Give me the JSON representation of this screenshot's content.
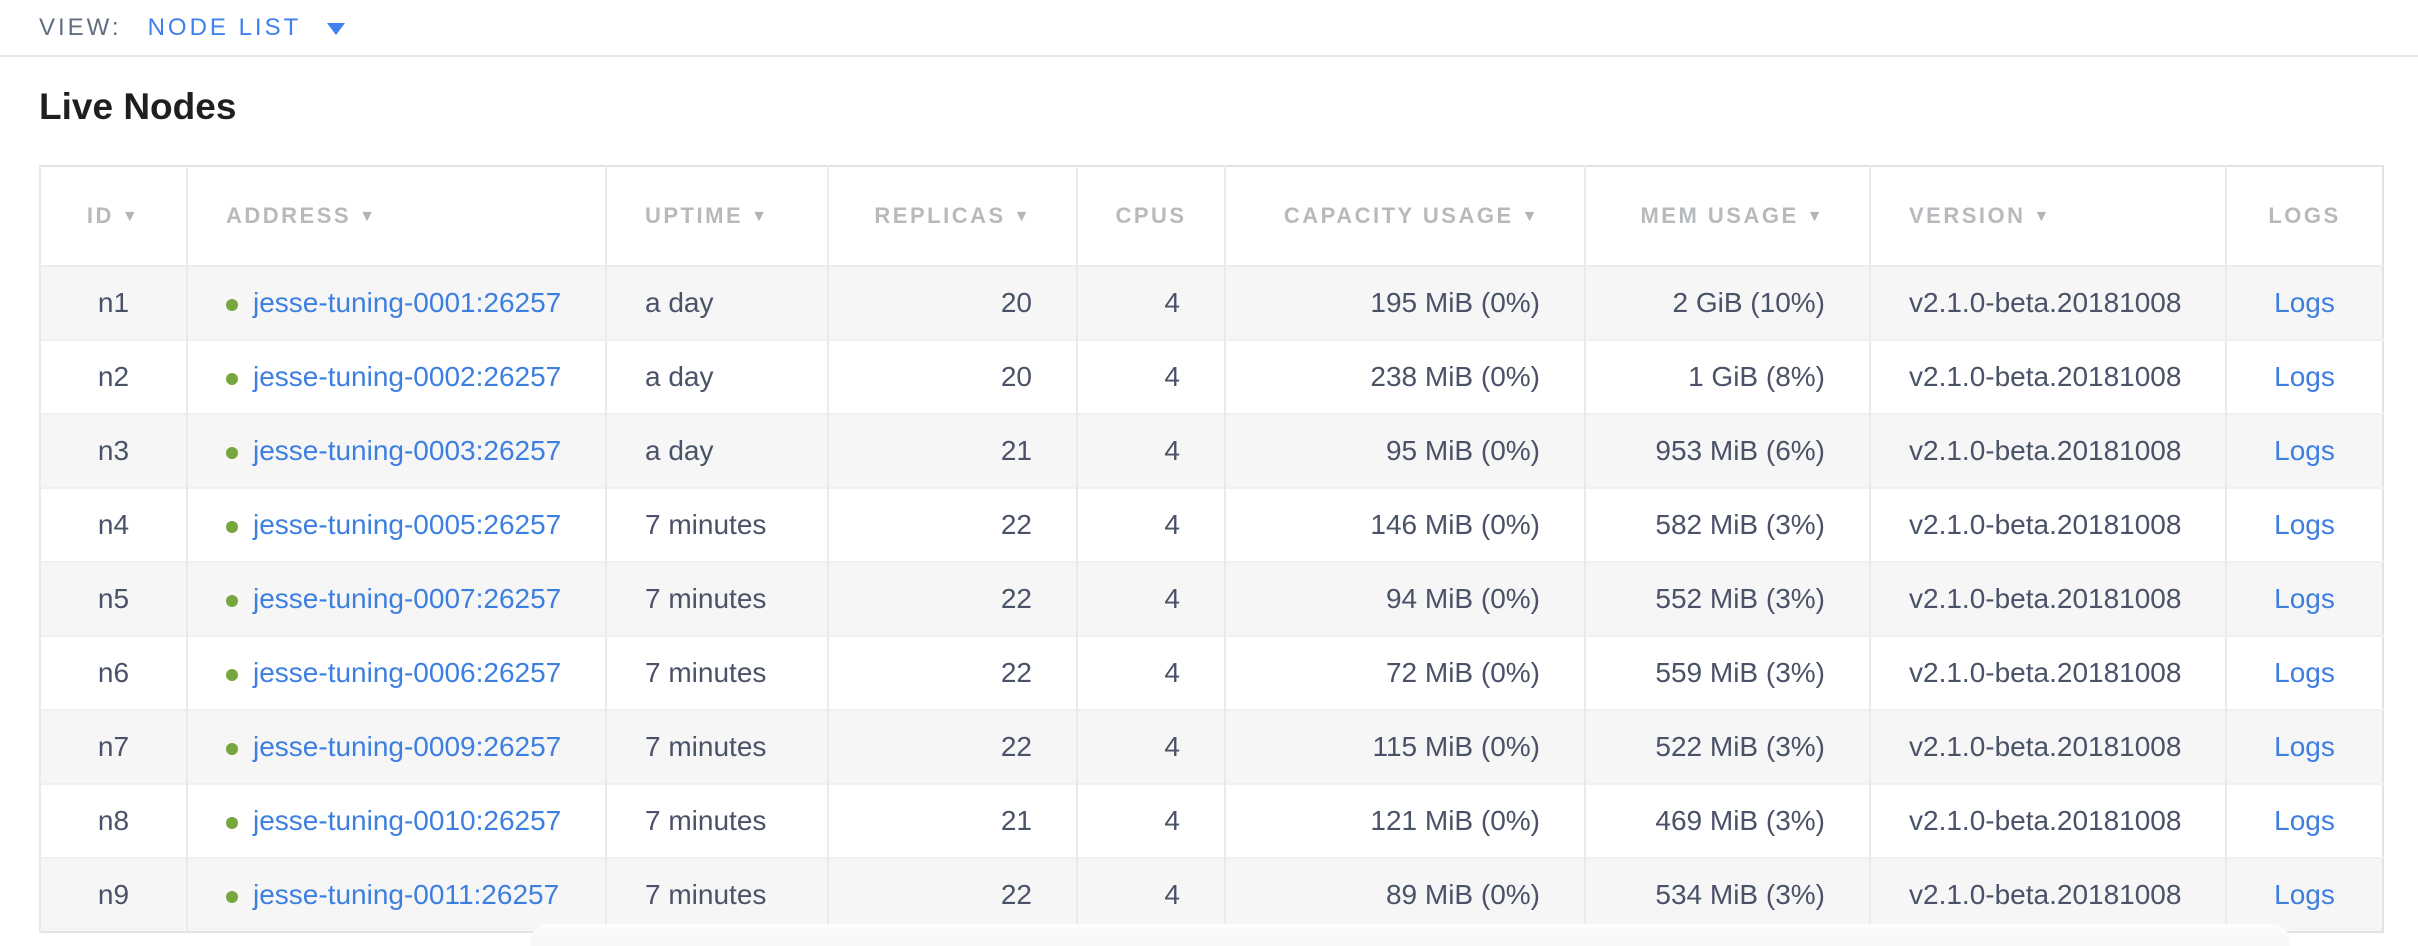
{
  "view_bar": {
    "label": "VIEW:",
    "selected": "NODE LIST"
  },
  "page": {
    "title": "Live Nodes"
  },
  "icons": {
    "sort_desc": "▼",
    "dropdown_caret": "▼",
    "live_status_dot": "●"
  },
  "colors": {
    "topbar_link_blue": "#3e80f0",
    "table_link_blue": "#3d7fe0",
    "live_dot_green": "#76a63c",
    "header_text_gray": "#b7babd",
    "cell_text_slate": "#4a5268",
    "row_stripe_gray": "#f6f6f6"
  },
  "table": {
    "columns": [
      {
        "key": "id",
        "label": "ID",
        "sorted": true,
        "align": "center"
      },
      {
        "key": "address",
        "label": "ADDRESS",
        "sorted": true,
        "align": "left"
      },
      {
        "key": "uptime",
        "label": "UPTIME",
        "sorted": true,
        "align": "left"
      },
      {
        "key": "replicas",
        "label": "REPLICAS",
        "sorted": true,
        "align": "right"
      },
      {
        "key": "cpus",
        "label": "CPUS",
        "sorted": false,
        "align": "right",
        "header_align": "center"
      },
      {
        "key": "capacity",
        "label": "CAPACITY USAGE",
        "sorted": true,
        "align": "right"
      },
      {
        "key": "mem",
        "label": "MEM USAGE",
        "sorted": true,
        "align": "right"
      },
      {
        "key": "version",
        "label": "VERSION",
        "sorted": true,
        "align": "left"
      },
      {
        "key": "logs",
        "label": "LOGS",
        "sorted": false,
        "align": "center"
      }
    ],
    "rows": [
      {
        "id": "n1",
        "address": "jesse-tuning-0001:26257",
        "uptime": "a day",
        "replicas": "20",
        "cpus": "4",
        "capacity": "195 MiB (0%)",
        "mem": "2 GiB (10%)",
        "version": "v2.1.0-beta.20181008",
        "logs": "Logs"
      },
      {
        "id": "n2",
        "address": "jesse-tuning-0002:26257",
        "uptime": "a day",
        "replicas": "20",
        "cpus": "4",
        "capacity": "238 MiB (0%)",
        "mem": "1 GiB (8%)",
        "version": "v2.1.0-beta.20181008",
        "logs": "Logs"
      },
      {
        "id": "n3",
        "address": "jesse-tuning-0003:26257",
        "uptime": "a day",
        "replicas": "21",
        "cpus": "4",
        "capacity": "95 MiB (0%)",
        "mem": "953 MiB (6%)",
        "version": "v2.1.0-beta.20181008",
        "logs": "Logs"
      },
      {
        "id": "n4",
        "address": "jesse-tuning-0005:26257",
        "uptime": "7 minutes",
        "replicas": "22",
        "cpus": "4",
        "capacity": "146 MiB (0%)",
        "mem": "582 MiB (3%)",
        "version": "v2.1.0-beta.20181008",
        "logs": "Logs"
      },
      {
        "id": "n5",
        "address": "jesse-tuning-0007:26257",
        "uptime": "7 minutes",
        "replicas": "22",
        "cpus": "4",
        "capacity": "94 MiB (0%)",
        "mem": "552 MiB (3%)",
        "version": "v2.1.0-beta.20181008",
        "logs": "Logs"
      },
      {
        "id": "n6",
        "address": "jesse-tuning-0006:26257",
        "uptime": "7 minutes",
        "replicas": "22",
        "cpus": "4",
        "capacity": "72 MiB (0%)",
        "mem": "559 MiB (3%)",
        "version": "v2.1.0-beta.20181008",
        "logs": "Logs"
      },
      {
        "id": "n7",
        "address": "jesse-tuning-0009:26257",
        "uptime": "7 minutes",
        "replicas": "22",
        "cpus": "4",
        "capacity": "115 MiB (0%)",
        "mem": "522 MiB (3%)",
        "version": "v2.1.0-beta.20181008",
        "logs": "Logs"
      },
      {
        "id": "n8",
        "address": "jesse-tuning-0010:26257",
        "uptime": "7 minutes",
        "replicas": "21",
        "cpus": "4",
        "capacity": "121 MiB (0%)",
        "mem": "469 MiB (3%)",
        "version": "v2.1.0-beta.20181008",
        "logs": "Logs"
      },
      {
        "id": "n9",
        "address": "jesse-tuning-0011:26257",
        "uptime": "7 minutes",
        "replicas": "22",
        "cpus": "4",
        "capacity": "89 MiB (0%)",
        "mem": "534 MiB (3%)",
        "version": "v2.1.0-beta.20181008",
        "logs": "Logs"
      }
    ]
  }
}
